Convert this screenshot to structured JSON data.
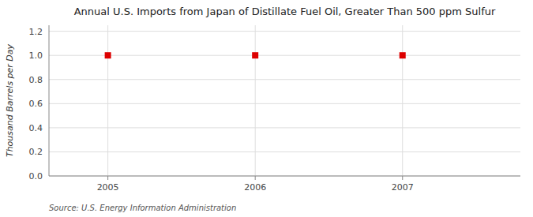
{
  "chart_data": {
    "type": "scatter",
    "title": "Annual U.S. Imports from Japan of Distillate Fuel Oil, Greater Than 500 ppm Sulfur",
    "ylabel": "Thousand Barrels per Day",
    "source": "Source: U.S. Energy Information Administration",
    "x": [
      2005,
      2006,
      2007
    ],
    "values": [
      1.0,
      1.0,
      1.0
    ],
    "color": "#dd0000",
    "marker": "square",
    "xlim": [
      2004.6,
      2007.8
    ],
    "ylim": [
      0.0,
      1.25
    ],
    "xticks": [
      2005,
      2006,
      2007
    ],
    "yticks": [
      {
        "value": 0.0,
        "label": "0.0"
      },
      0.2,
      0.4,
      0.6,
      0.8,
      {
        "value": 1.0,
        "label": "1.0"
      },
      1.2
    ],
    "grid": true
  }
}
